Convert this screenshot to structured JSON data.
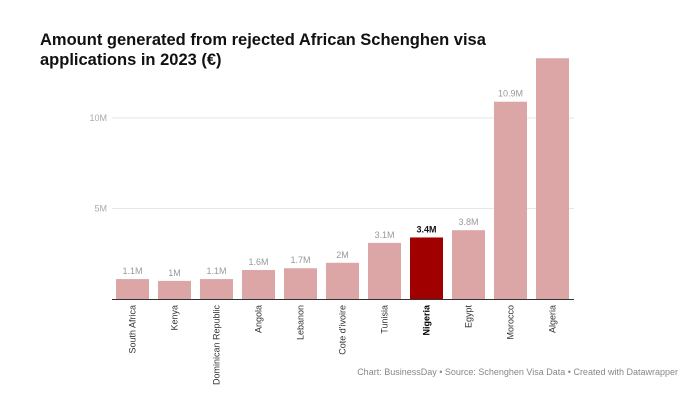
{
  "title": "Amount generated from rejected African Schenghen visa applications in 2023 (€)",
  "footer": "Chart: BusinessDay • Source: Schenghen Visa Data • Created with Datawrapper",
  "colors": {
    "bar": "#dca5a6",
    "highlight": "#a00000",
    "grid": "#e6e6e6",
    "axis": "#333333"
  },
  "chart_data": {
    "type": "bar",
    "title": "Amount generated from rejected African Schenghen visa applications in 2023 (€)",
    "categories": [
      "South Africa",
      "Kenya",
      "Dominican Republic",
      "Angola",
      "Lebanon",
      "Cote d'ivoire",
      "Tunisia",
      "Nigeria",
      "Egypt",
      "Morocco",
      "Algeria"
    ],
    "values": [
      1.1,
      1.0,
      1.1,
      1.6,
      1.7,
      2.0,
      3.1,
      3.4,
      3.8,
      10.9,
      13.3
    ],
    "value_labels": [
      "1.1M",
      "1M",
      "1.1M",
      "1.6M",
      "1.7M",
      "2M",
      "3.1M",
      "3.4M",
      "3.8M",
      "10.9M",
      ""
    ],
    "unit": "M €",
    "highlight": "Nigeria",
    "yticks": [
      {
        "value": 5,
        "label": "5M"
      },
      {
        "value": 10,
        "label": "10M"
      }
    ],
    "ylim": [
      0,
      13.3
    ],
    "grid": true,
    "xlabel": "",
    "ylabel": ""
  }
}
